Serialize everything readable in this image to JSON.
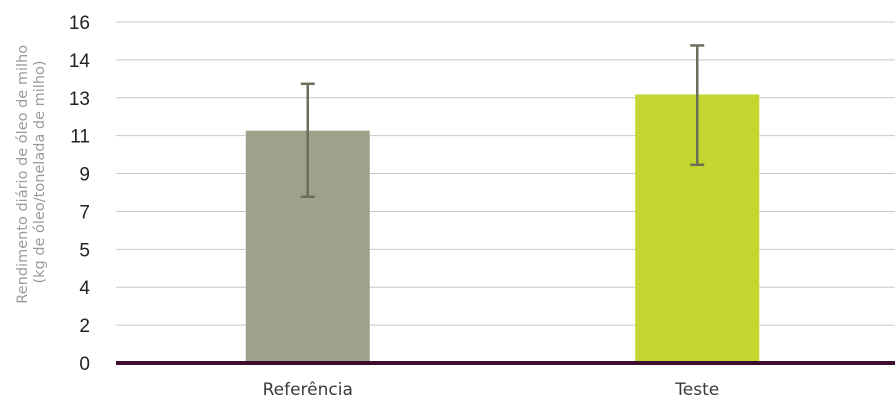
{
  "chart_data": {
    "type": "bar",
    "ylabel_lines": [
      "Rendimento diário de óleo de milho",
      "(kg de óleo/tonelada de milho)"
    ],
    "y_tick_labels": [
      "16",
      "14",
      "13",
      "11",
      "9",
      "7",
      "5",
      "4",
      "2",
      "0"
    ],
    "ylim": [
      0,
      16
    ],
    "grid": true,
    "categories": [
      "Referência",
      "Teste"
    ],
    "values": [
      10.9,
      12.6
    ],
    "error_low": [
      7.8,
      9.3
    ],
    "error_high": [
      13.1,
      14.9
    ],
    "colors": {
      "bars": [
        "#9ca38a",
        "#c4d62f"
      ],
      "error": "#6b6f58",
      "grid": "#c8c8c8",
      "baseline": "#3d0f2e"
    }
  }
}
